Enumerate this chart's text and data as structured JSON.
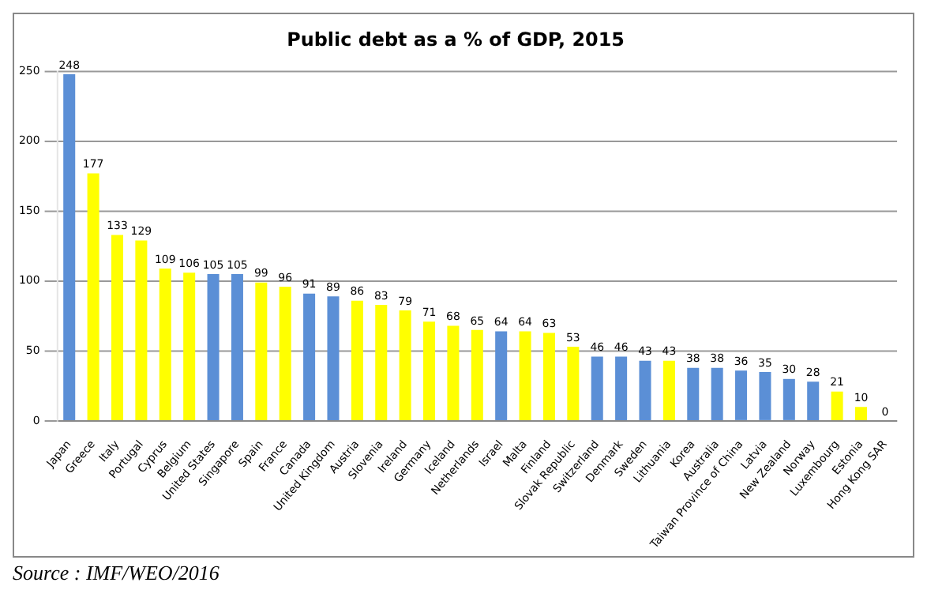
{
  "chart_data": {
    "type": "bar",
    "title": "Public debt as a % of GDP, 2015",
    "categories": [
      "Japan",
      "Greece",
      "Italy",
      "Portugal",
      "Cyprus",
      "Belgium",
      "United States",
      "Singapore",
      "Spain",
      "France",
      "Canada",
      "United Kingdom",
      "Austria",
      "Slovenia",
      "Ireland",
      "Germany",
      "Iceland",
      "Netherlands",
      "Israel",
      "Malta",
      "Finland",
      "Slovak Republic",
      "Switzerland",
      "Denmark",
      "Sweden",
      "Lithuania",
      "Korea",
      "Australia",
      "Taiwan Province of China",
      "Latvia",
      "New Zealand",
      "Norway",
      "Luxembourg",
      "Estonia",
      "Hong Kong SAR"
    ],
    "values": [
      248,
      177,
      133,
      129,
      109,
      106,
      105,
      105,
      99,
      96,
      91,
      89,
      86,
      83,
      79,
      71,
      68,
      65,
      64,
      64,
      63,
      53,
      46,
      46,
      43,
      43,
      38,
      38,
      36,
      35,
      30,
      28,
      21,
      10,
      0
    ],
    "colors": [
      "#5b8fd6",
      "#ffff00",
      "#ffff00",
      "#ffff00",
      "#ffff00",
      "#ffff00",
      "#5b8fd6",
      "#5b8fd6",
      "#ffff00",
      "#ffff00",
      "#5b8fd6",
      "#5b8fd6",
      "#ffff00",
      "#ffff00",
      "#ffff00",
      "#ffff00",
      "#ffff00",
      "#ffff00",
      "#5b8fd6",
      "#ffff00",
      "#ffff00",
      "#ffff00",
      "#5b8fd6",
      "#5b8fd6",
      "#5b8fd6",
      "#ffff00",
      "#5b8fd6",
      "#5b8fd6",
      "#5b8fd6",
      "#5b8fd6",
      "#5b8fd6",
      "#5b8fd6",
      "#ffff00",
      "#ffff00",
      "#5b8fd6"
    ],
    "ylim": [
      0,
      250
    ],
    "yticks": [
      0,
      50,
      100,
      150,
      200,
      250
    ],
    "grid": "y",
    "legend": false,
    "data_labels": true,
    "annotations": [
      "Source : IMF/WEO/2016"
    ]
  }
}
